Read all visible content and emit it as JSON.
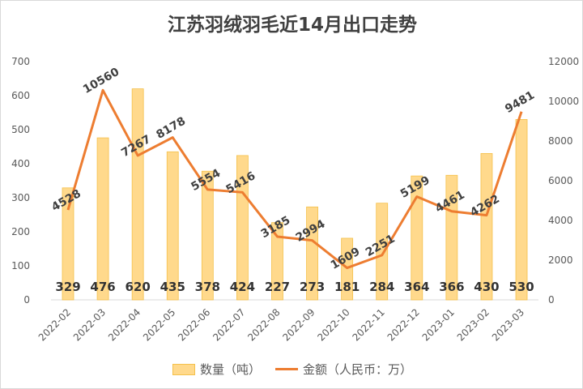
{
  "chart_data": {
    "type": "bar+line",
    "title": "江苏羽绒羽毛近14月出口走势",
    "categories": [
      "2022-02",
      "2022-03",
      "2022-04",
      "2022-05",
      "2022-06",
      "2022-07",
      "2022-08",
      "2022-09",
      "2022-10",
      "2022-11",
      "2022-12",
      "2023-01",
      "2023-02",
      "2023-03"
    ],
    "series": [
      {
        "name": "数量（吨）",
        "type": "bar",
        "axis": "left",
        "color": "#FFD98C",
        "values": [
          329,
          476,
          620,
          435,
          378,
          424,
          227,
          273,
          181,
          284,
          364,
          366,
          430,
          530
        ]
      },
      {
        "name": "金额（人民币：万）",
        "type": "line",
        "axis": "right",
        "color": "#ED7D31",
        "values": [
          4528,
          10560,
          7267,
          8178,
          5554,
          5416,
          3185,
          2994,
          1609,
          2251,
          5199,
          4461,
          4262,
          9481
        ]
      }
    ],
    "ylim_left": [
      0,
      700
    ],
    "yticks_left": [
      0,
      100,
      200,
      300,
      400,
      500,
      600,
      700
    ],
    "ylim_right": [
      0,
      12000
    ],
    "yticks_right": [
      0,
      2000,
      4000,
      6000,
      8000,
      10000,
      12000
    ],
    "grid": false,
    "legend": "bottom"
  }
}
